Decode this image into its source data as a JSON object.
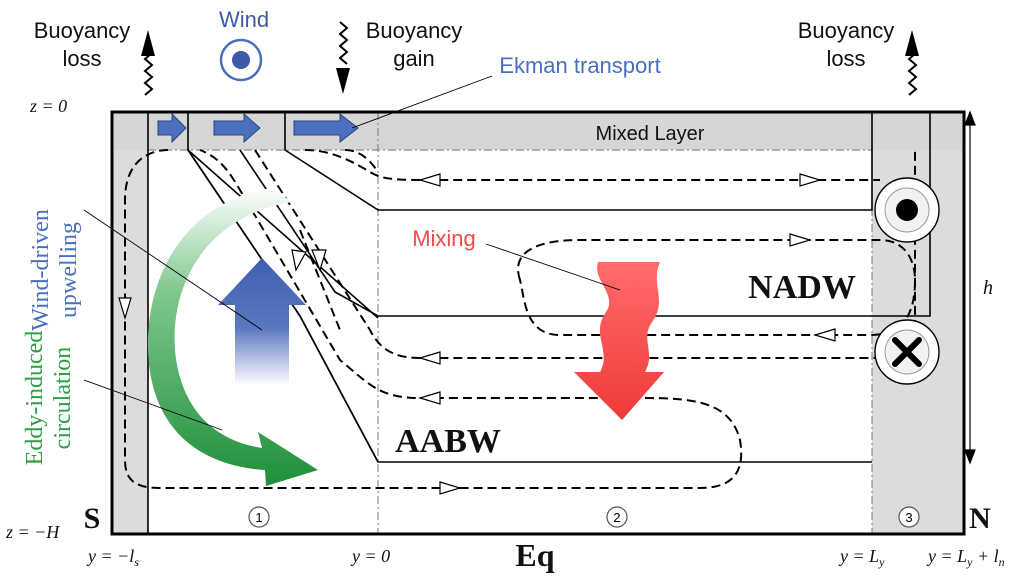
{
  "top_labels": {
    "buoyancy_loss_left_line1": "Buoyancy",
    "buoyancy_loss_left_line2": "loss",
    "wind": "Wind",
    "buoyancy_gain_line1": "Buoyancy",
    "buoyancy_gain_line2": "gain",
    "ekman_transport": "Ekman transport",
    "buoyancy_loss_right_line1": "Buoyancy",
    "buoyancy_loss_right_line2": "loss"
  },
  "depth_labels": {
    "surface": "z = 0",
    "bottom": "z = −H",
    "layer_thickness": "h"
  },
  "regions": {
    "mixed_layer": "Mixed Layer",
    "nadw": "NADW",
    "aabw": "AABW",
    "mixing": "Mixing",
    "south": "S",
    "north": "N",
    "equator": "Eq",
    "zone_1": "1",
    "zone_2": "2",
    "zone_3": "3"
  },
  "side_labels": {
    "wind_upwelling_line1": "Wind-driven",
    "wind_upwelling_line2": "upwelling",
    "eddy_line1": "Eddy-induced",
    "eddy_line2": "circulation"
  },
  "axis_positions": {
    "y_south": "y = −l",
    "y_south_sub": "s",
    "y_zero": "y = 0",
    "y_ly": "y = L",
    "y_ly_sub": "y",
    "y_lyln": "y = L",
    "y_lyln_sub1": "y",
    "y_lyln_mid": " + l",
    "y_lyln_sub2": "n"
  },
  "colors": {
    "wind_blue": "#3d5aa8",
    "ekman_blue": "#4a6fbf",
    "mixing_red": "#f04b4b",
    "eddy_green": "#2e9e45",
    "mixed_layer_gray": "#d8d8d8",
    "zone_gray": "#e0e0e0"
  }
}
